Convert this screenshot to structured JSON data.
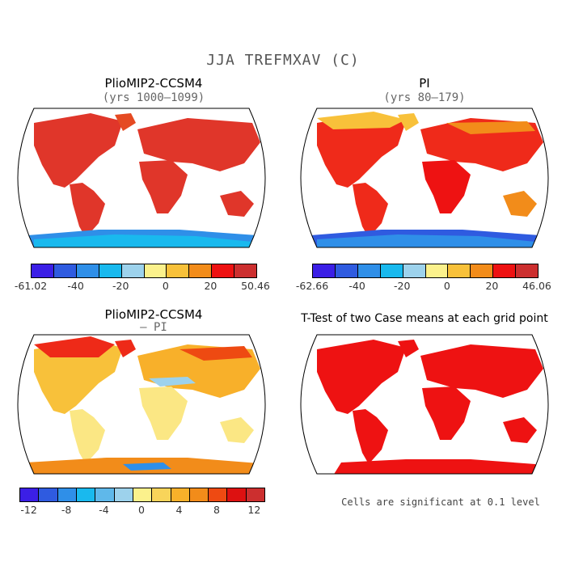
{
  "figure": {
    "title": "JJA TREFMXAV (C)",
    "note": "Cells are significant at 0.1 level"
  },
  "panels": [
    {
      "title": "PlioMIP2-CCSM4",
      "subtitle": "(yrs 1000–1099)",
      "colorbar": {
        "colors": [
          "#3b1fe6",
          "#2f5be0",
          "#2f8fe8",
          "#19b9ee",
          "#9dd2ec",
          "#fbf18c",
          "#f8c13a",
          "#f28c1a",
          "#ee1212",
          "#cc2f2f"
        ],
        "labels": [
          "-61.02",
          "-40",
          "-20",
          "0",
          "20",
          "50.46"
        ]
      }
    },
    {
      "title": "PI",
      "subtitle": "(yrs 80–179)",
      "colorbar": {
        "colors": [
          "#3b1fe6",
          "#2f5be0",
          "#2f8fe8",
          "#19b9ee",
          "#9dd2ec",
          "#fbf18c",
          "#f8c13a",
          "#f28c1a",
          "#ee1212",
          "#cc2f2f"
        ],
        "labels": [
          "-62.66",
          "-40",
          "-20",
          "0",
          "20",
          "46.06"
        ]
      }
    },
    {
      "title": "PlioMIP2-CCSM4",
      "subtitle": "– PI",
      "colorbar": {
        "colors": [
          "#3b1fe6",
          "#2f5be0",
          "#2f8fe8",
          "#19b9ee",
          "#5fb8ea",
          "#9dd2ec",
          "#fbf18c",
          "#f8d45a",
          "#f8b02a",
          "#f28c1a",
          "#ee4a12",
          "#dd1111",
          "#cc2f2f"
        ],
        "labels": [
          "-12",
          "-8",
          "-4",
          "0",
          "4",
          "8",
          "12"
        ]
      }
    },
    {
      "title": "T-Test of two Case means at each grid point"
    }
  ]
}
